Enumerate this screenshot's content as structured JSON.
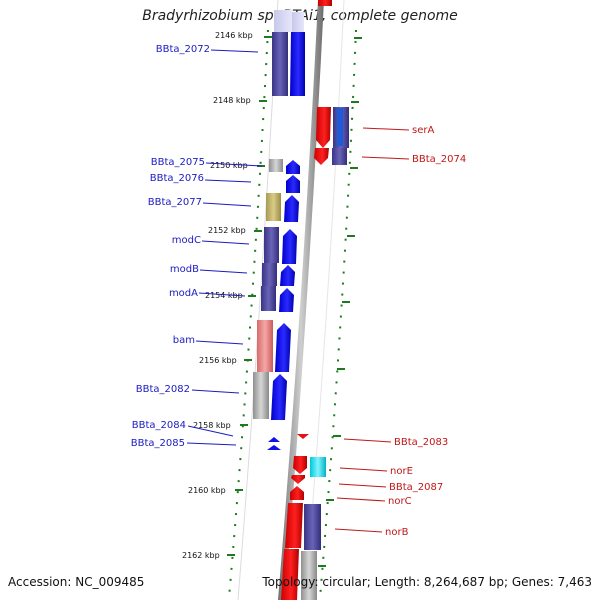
{
  "title": "Bradyrhizobium sp. BTAi1, complete genome",
  "footer": {
    "accession": "Accession: NC_009485",
    "summary": "Topology: circular; Length: 8,264,687 bp; Genes: 7,463"
  },
  "ruler": [
    "2146 kbp",
    "2148 kbp",
    "2150 kbp",
    "2152 kbp",
    "2154 kbp",
    "2156 kbp",
    "2158 kbp",
    "2160 kbp",
    "2162 kbp"
  ],
  "genes_left": [
    "BBta_2072",
    "BBta_2075",
    "BBta_2076",
    "BBta_2077",
    "modC",
    "modB",
    "modA",
    "bam",
    "BBta_2082",
    "BBta_2084",
    "BBta_2085"
  ],
  "genes_right": [
    "serA",
    "BBta_2074",
    "BBta_2083",
    "norE",
    "BBta_2087",
    "norC",
    "norB"
  ],
  "colors": {
    "forward_strand": "#1010e8",
    "reverse_strand": "#e81010",
    "left_label": "#1c1cc0",
    "right_label": "#c01818",
    "tick": "#1e7a1e"
  }
}
